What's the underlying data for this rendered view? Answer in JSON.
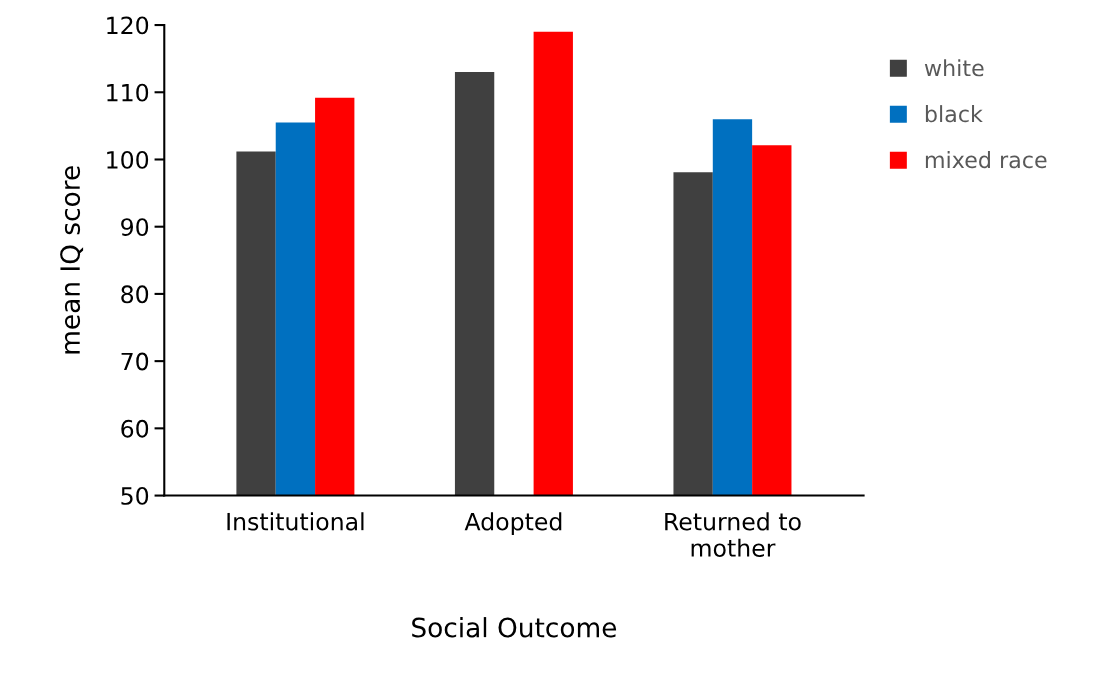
{
  "chart_data": {
    "type": "bar",
    "xlabel": "Social Outcome",
    "ylabel": "mean IQ score",
    "categories": [
      "Institutional",
      "Adopted",
      "Returned to\nmother"
    ],
    "series": [
      {
        "name": "white",
        "color": "#404040",
        "values": [
          101.2,
          113.0,
          98.1
        ]
      },
      {
        "name": "black",
        "color": "#0070c0",
        "values": [
          105.5,
          null,
          106.0
        ]
      },
      {
        "name": "mixed race",
        "color": "#ff0000",
        "values": [
          109.2,
          119.0,
          102.1
        ]
      }
    ],
    "ylim": [
      50,
      120
    ],
    "yticks": [
      50,
      60,
      70,
      80,
      90,
      100,
      110,
      120
    ],
    "grid": false,
    "legend": "right"
  }
}
